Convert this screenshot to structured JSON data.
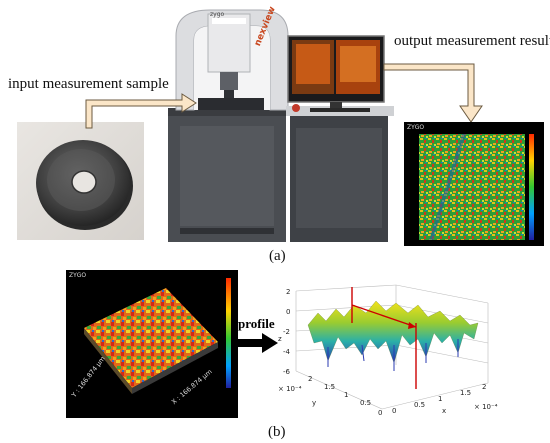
{
  "panel_a": {
    "input_label": "input measurement sample",
    "output_label": "output measurement result",
    "instrument_brand": "zygo",
    "instrument_model": "nexview",
    "caption": "(a)"
  },
  "panel_b": {
    "arrow_label": "profile",
    "map3d_axis_y": "Y : 166.874 μm",
    "map3d_axis_x": "X : 166.874 μm",
    "plot_z_label": "z",
    "plot_x_label": "x",
    "plot_y_label": "y",
    "plot_x_exp": "× 10⁻⁴",
    "plot_y_exp": "× 10⁻⁴",
    "z_ticks": [
      "2",
      "0",
      "-2",
      "-4",
      "-6"
    ],
    "x_ticks": [
      "0",
      "0.5",
      "1",
      "1.5",
      "2"
    ],
    "y_ticks": [
      "0",
      "0.5",
      "1",
      "1.5",
      "2"
    ],
    "caption": "(b)"
  },
  "colors": {
    "arrow_fill": "#fbe6c8",
    "arrow_stroke": "#6b5a40",
    "profile_line": "#cc0000"
  }
}
